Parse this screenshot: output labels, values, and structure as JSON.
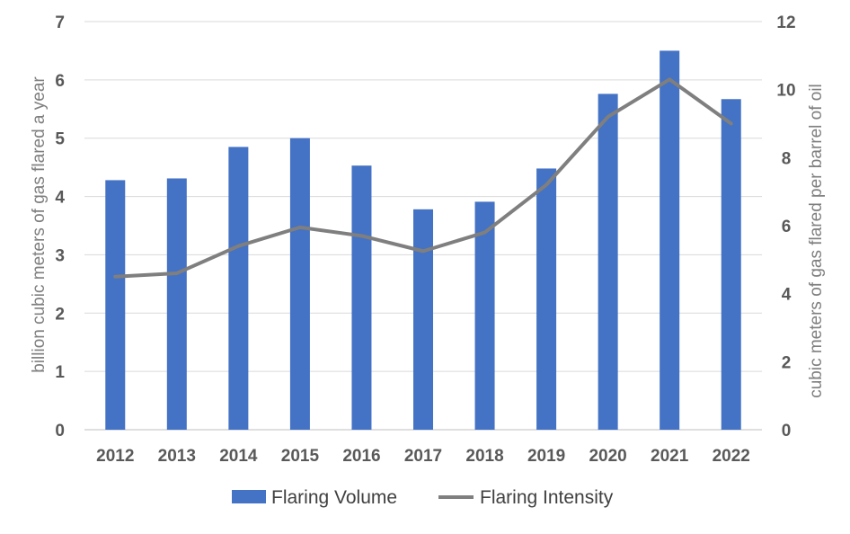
{
  "chart_data": {
    "type": "bar+line",
    "categories": [
      "2012",
      "2013",
      "2014",
      "2015",
      "2016",
      "2017",
      "2018",
      "2019",
      "2020",
      "2021",
      "2022"
    ],
    "series": [
      {
        "name": "Flaring Volume",
        "type": "bar",
        "axis": "left",
        "color": "#4472c4",
        "values": [
          4.28,
          4.31,
          4.85,
          5.0,
          4.53,
          3.78,
          3.91,
          4.48,
          5.76,
          6.5,
          5.67
        ]
      },
      {
        "name": "Flaring Intensity",
        "type": "line",
        "axis": "right",
        "color": "#7f7f7f",
        "values": [
          4.5,
          4.6,
          5.4,
          5.95,
          5.7,
          5.25,
          5.8,
          7.2,
          9.2,
          10.3,
          9.0
        ]
      }
    ],
    "ylabel_left": "billion cubic meters of gas flared a year",
    "ylabel_right": "cubic meters of gas flared per barrel of oil",
    "ylim_left": [
      0,
      7
    ],
    "yticks_left": [
      "0",
      "1",
      "2",
      "3",
      "4",
      "5",
      "6",
      "7"
    ],
    "ylim_right": [
      0,
      12
    ],
    "yticks_right": [
      "0",
      "2",
      "4",
      "6",
      "8",
      "10",
      "12"
    ],
    "grid": true,
    "legend_position": "bottom"
  }
}
